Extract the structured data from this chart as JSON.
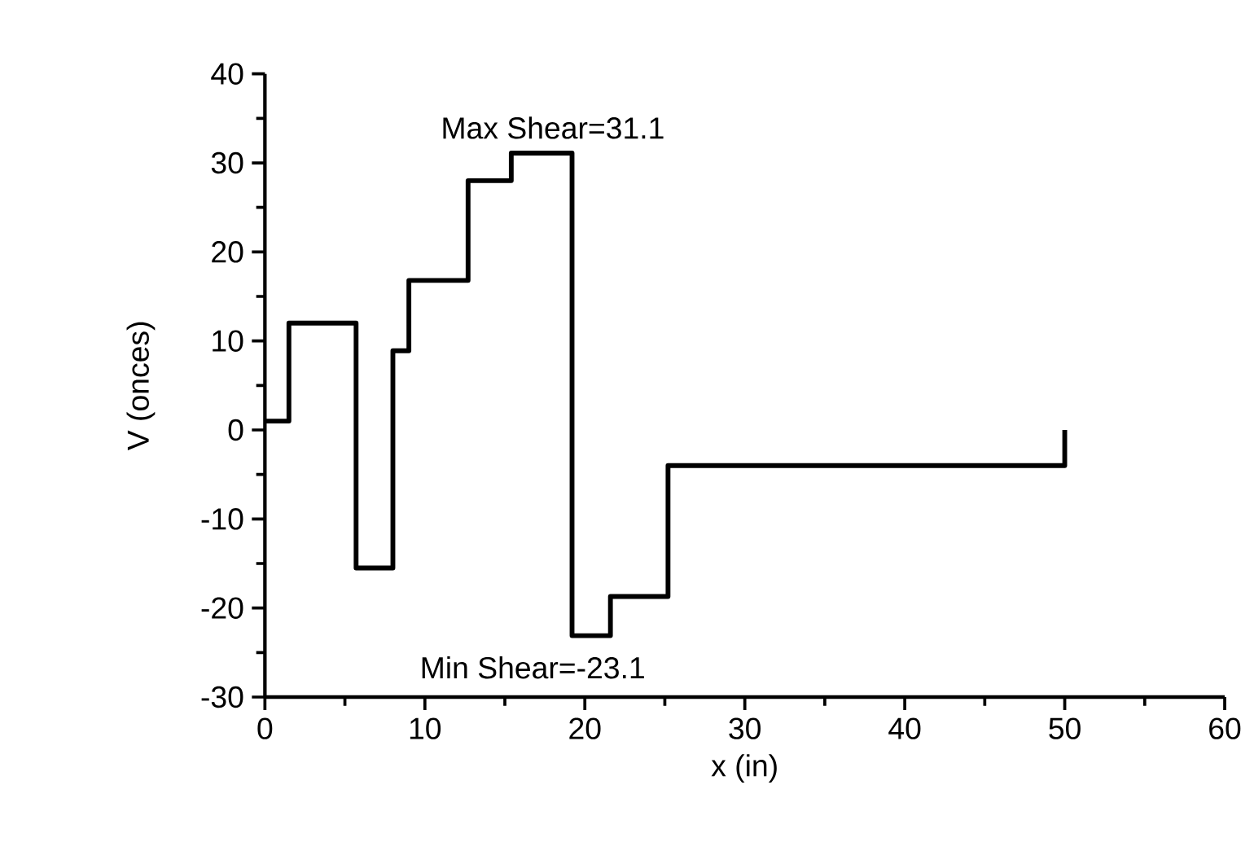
{
  "chart_data": {
    "type": "step",
    "xlabel": "x (in)",
    "ylabel": "V (onces)",
    "x": [
      0,
      1.5,
      5.7,
      8,
      9,
      12.7,
      15.4,
      19.2,
      21.6,
      25.2,
      50
    ],
    "series": [
      {
        "color": "#000000",
        "values": [
          1,
          12,
          -15.5,
          8.9,
          16.8,
          28,
          31.1,
          -23.1,
          -18.7,
          -4,
          0
        ]
      }
    ],
    "xlim": [
      0,
      60
    ],
    "xticks": [
      0,
      10,
      20,
      30,
      40,
      50,
      60
    ],
    "ylim": [
      -30,
      40
    ],
    "yticks": [
      -30,
      -20,
      -10,
      0,
      10,
      20,
      30,
      40
    ],
    "annotations": [
      {
        "text": "Max Shear=31.1",
        "x": 18,
        "y": 31.1
      },
      {
        "text": "Min Shear=-23.1",
        "x": 20,
        "y": -23.1
      }
    ],
    "grid": false,
    "marker": "none",
    "line_style": "solid"
  }
}
